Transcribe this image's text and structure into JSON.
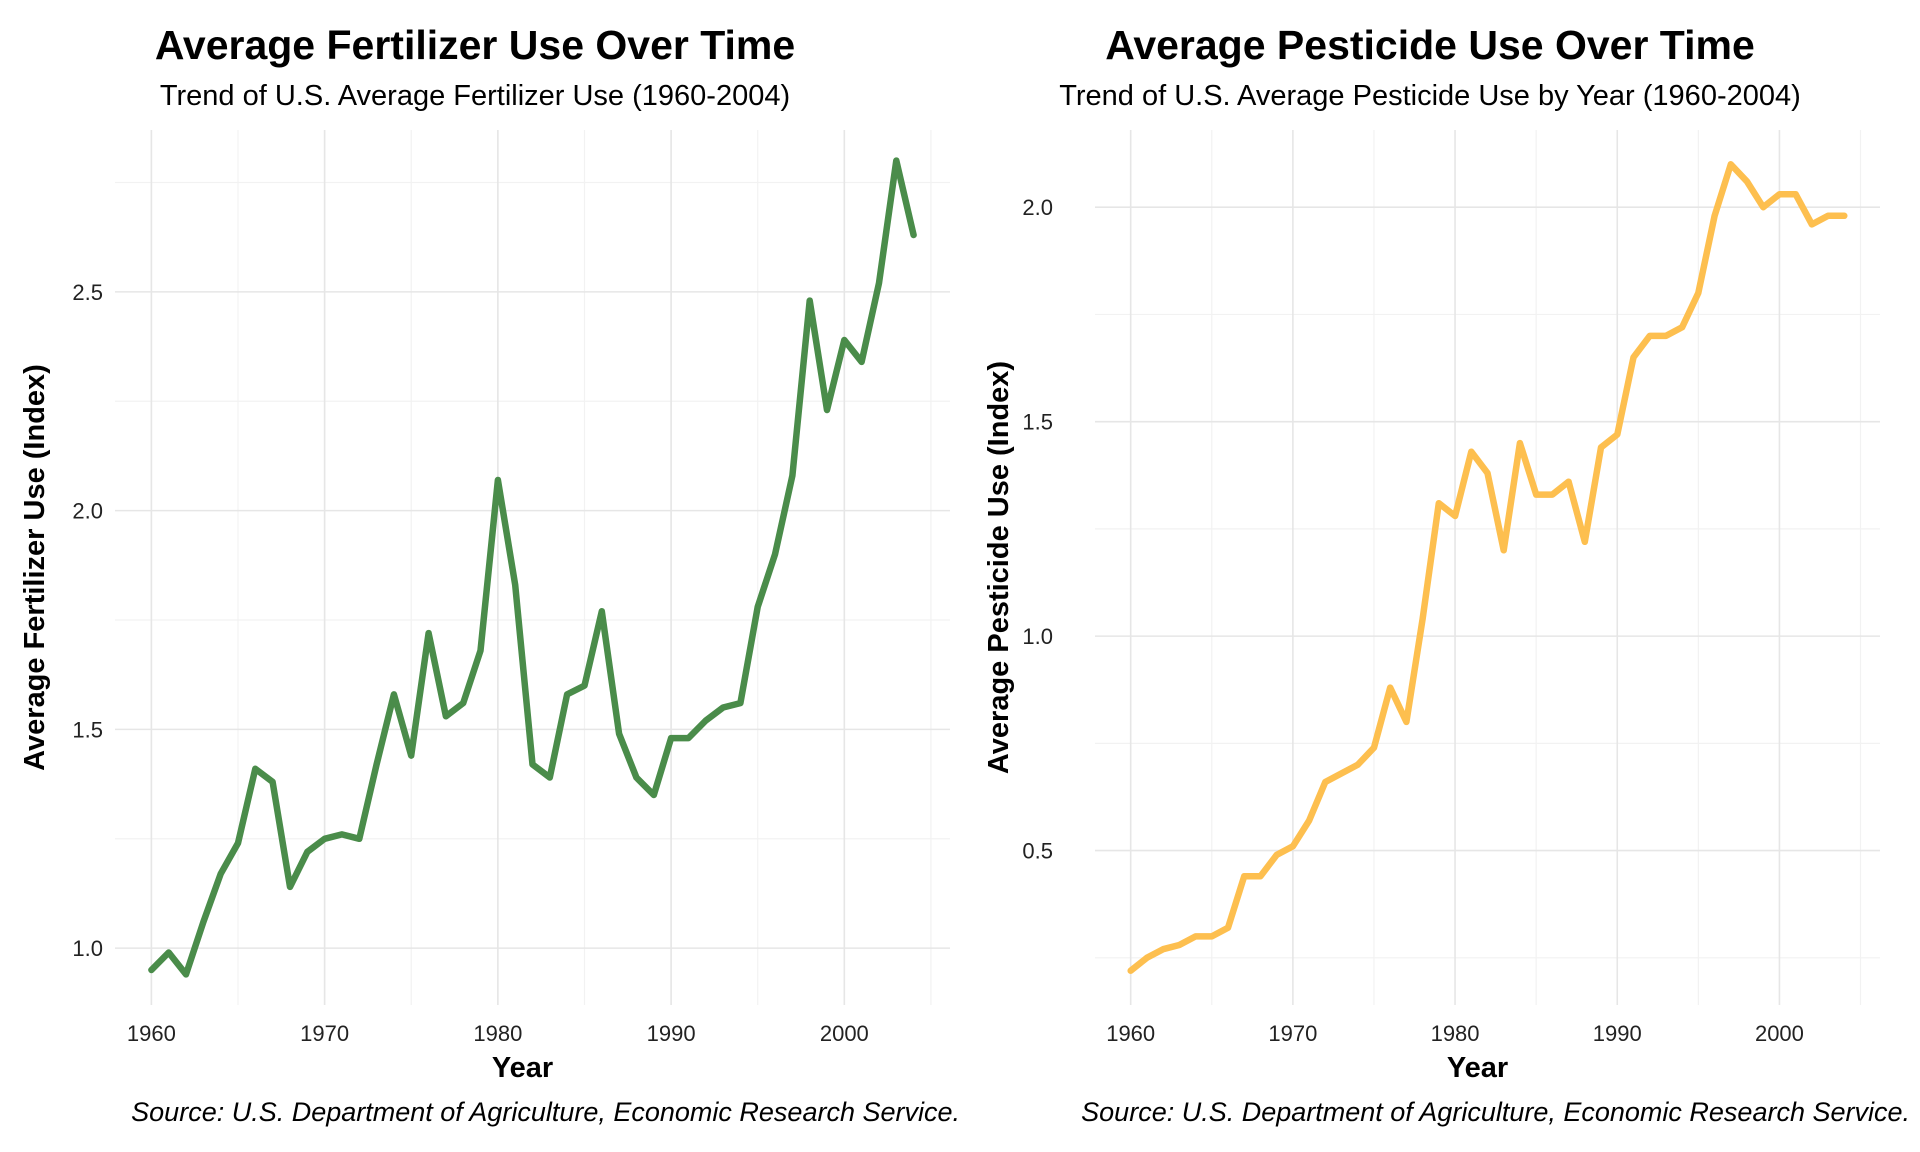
{
  "chart_data": [
    {
      "type": "line",
      "title": "Average Fertilizer Use Over Time",
      "subtitle": "Trend of U.S. Average Fertilizer Use (1960-2004)",
      "xlabel": "Year",
      "ylabel": "Average Fertilizer Use (Index)",
      "caption": "Source: U.S. Department of Agriculture, Economic Research Service.",
      "color": "#4a8c4a",
      "grid": true,
      "xlim": [
        1957.9,
        2006.1
      ],
      "ylim": [
        0.87,
        2.87
      ],
      "x_ticks": [
        1960,
        1970,
        1980,
        1990,
        2000
      ],
      "y_ticks": [
        1.0,
        1.5,
        2.0,
        2.5
      ],
      "x_tick_labels": [
        "1960",
        "1970",
        "1980",
        "1990",
        "2000"
      ],
      "y_tick_labels": [
        "1.0",
        "1.5",
        "2.0",
        "2.5"
      ],
      "x": [
        1960,
        1961,
        1962,
        1963,
        1964,
        1965,
        1966,
        1967,
        1968,
        1969,
        1970,
        1971,
        1972,
        1973,
        1974,
        1975,
        1976,
        1977,
        1978,
        1979,
        1980,
        1981,
        1982,
        1983,
        1984,
        1985,
        1986,
        1987,
        1988,
        1989,
        1990,
        1991,
        1992,
        1993,
        1994,
        1995,
        1996,
        1997,
        1998,
        1999,
        2000,
        2001,
        2002,
        2003,
        2004
      ],
      "y": [
        0.95,
        0.99,
        0.94,
        1.06,
        1.17,
        1.24,
        1.41,
        1.38,
        1.14,
        1.22,
        1.25,
        1.26,
        1.25,
        1.42,
        1.58,
        1.44,
        1.72,
        1.53,
        1.56,
        1.68,
        2.07,
        1.83,
        1.42,
        1.39,
        1.58,
        1.6,
        1.77,
        1.49,
        1.39,
        1.35,
        1.48,
        1.48,
        1.52,
        1.55,
        1.56,
        1.78,
        1.9,
        2.08,
        2.48,
        2.23,
        2.39,
        2.34,
        2.52,
        2.8,
        2.63
      ]
    },
    {
      "type": "line",
      "title": "Average Pesticide Use Over Time",
      "subtitle": "Trend of U.S. Average Pesticide Use by Year (1960-2004)",
      "xlabel": "Year",
      "ylabel": "Average Pesticide Use (Index)",
      "caption": "Source: U.S. Department of Agriculture, Economic Research Service.",
      "color": "#fdbf4f",
      "grid": true,
      "xlim": [
        1957.8,
        2006.2
      ],
      "ylim": [
        0.14,
        2.18
      ],
      "x_ticks": [
        1960,
        1970,
        1980,
        1990,
        2000
      ],
      "y_ticks": [
        0.5,
        1.0,
        1.5,
        2.0
      ],
      "x_tick_labels": [
        "1960",
        "1970",
        "1980",
        "1990",
        "2000"
      ],
      "y_tick_labels": [
        "0.5",
        "1.0",
        "1.5",
        "2.0"
      ],
      "x": [
        1960,
        1961,
        1962,
        1963,
        1964,
        1965,
        1966,
        1967,
        1968,
        1969,
        1970,
        1971,
        1972,
        1973,
        1974,
        1975,
        1976,
        1977,
        1978,
        1979,
        1980,
        1981,
        1982,
        1983,
        1984,
        1985,
        1986,
        1987,
        1988,
        1989,
        1990,
        1991,
        1992,
        1993,
        1994,
        1995,
        1996,
        1997,
        1998,
        1999,
        2000,
        2001,
        2002,
        2003,
        2004
      ],
      "y": [
        0.22,
        0.25,
        0.27,
        0.28,
        0.3,
        0.3,
        0.32,
        0.44,
        0.44,
        0.49,
        0.51,
        0.57,
        0.66,
        0.68,
        0.7,
        0.74,
        0.88,
        0.8,
        1.04,
        1.31,
        1.28,
        1.43,
        1.38,
        1.2,
        1.45,
        1.33,
        1.33,
        1.36,
        1.22,
        1.44,
        1.47,
        1.65,
        1.7,
        1.7,
        1.72,
        1.8,
        1.98,
        2.1,
        2.06,
        2.0,
        2.03,
        2.03,
        1.96,
        1.98,
        1.98
      ]
    }
  ]
}
